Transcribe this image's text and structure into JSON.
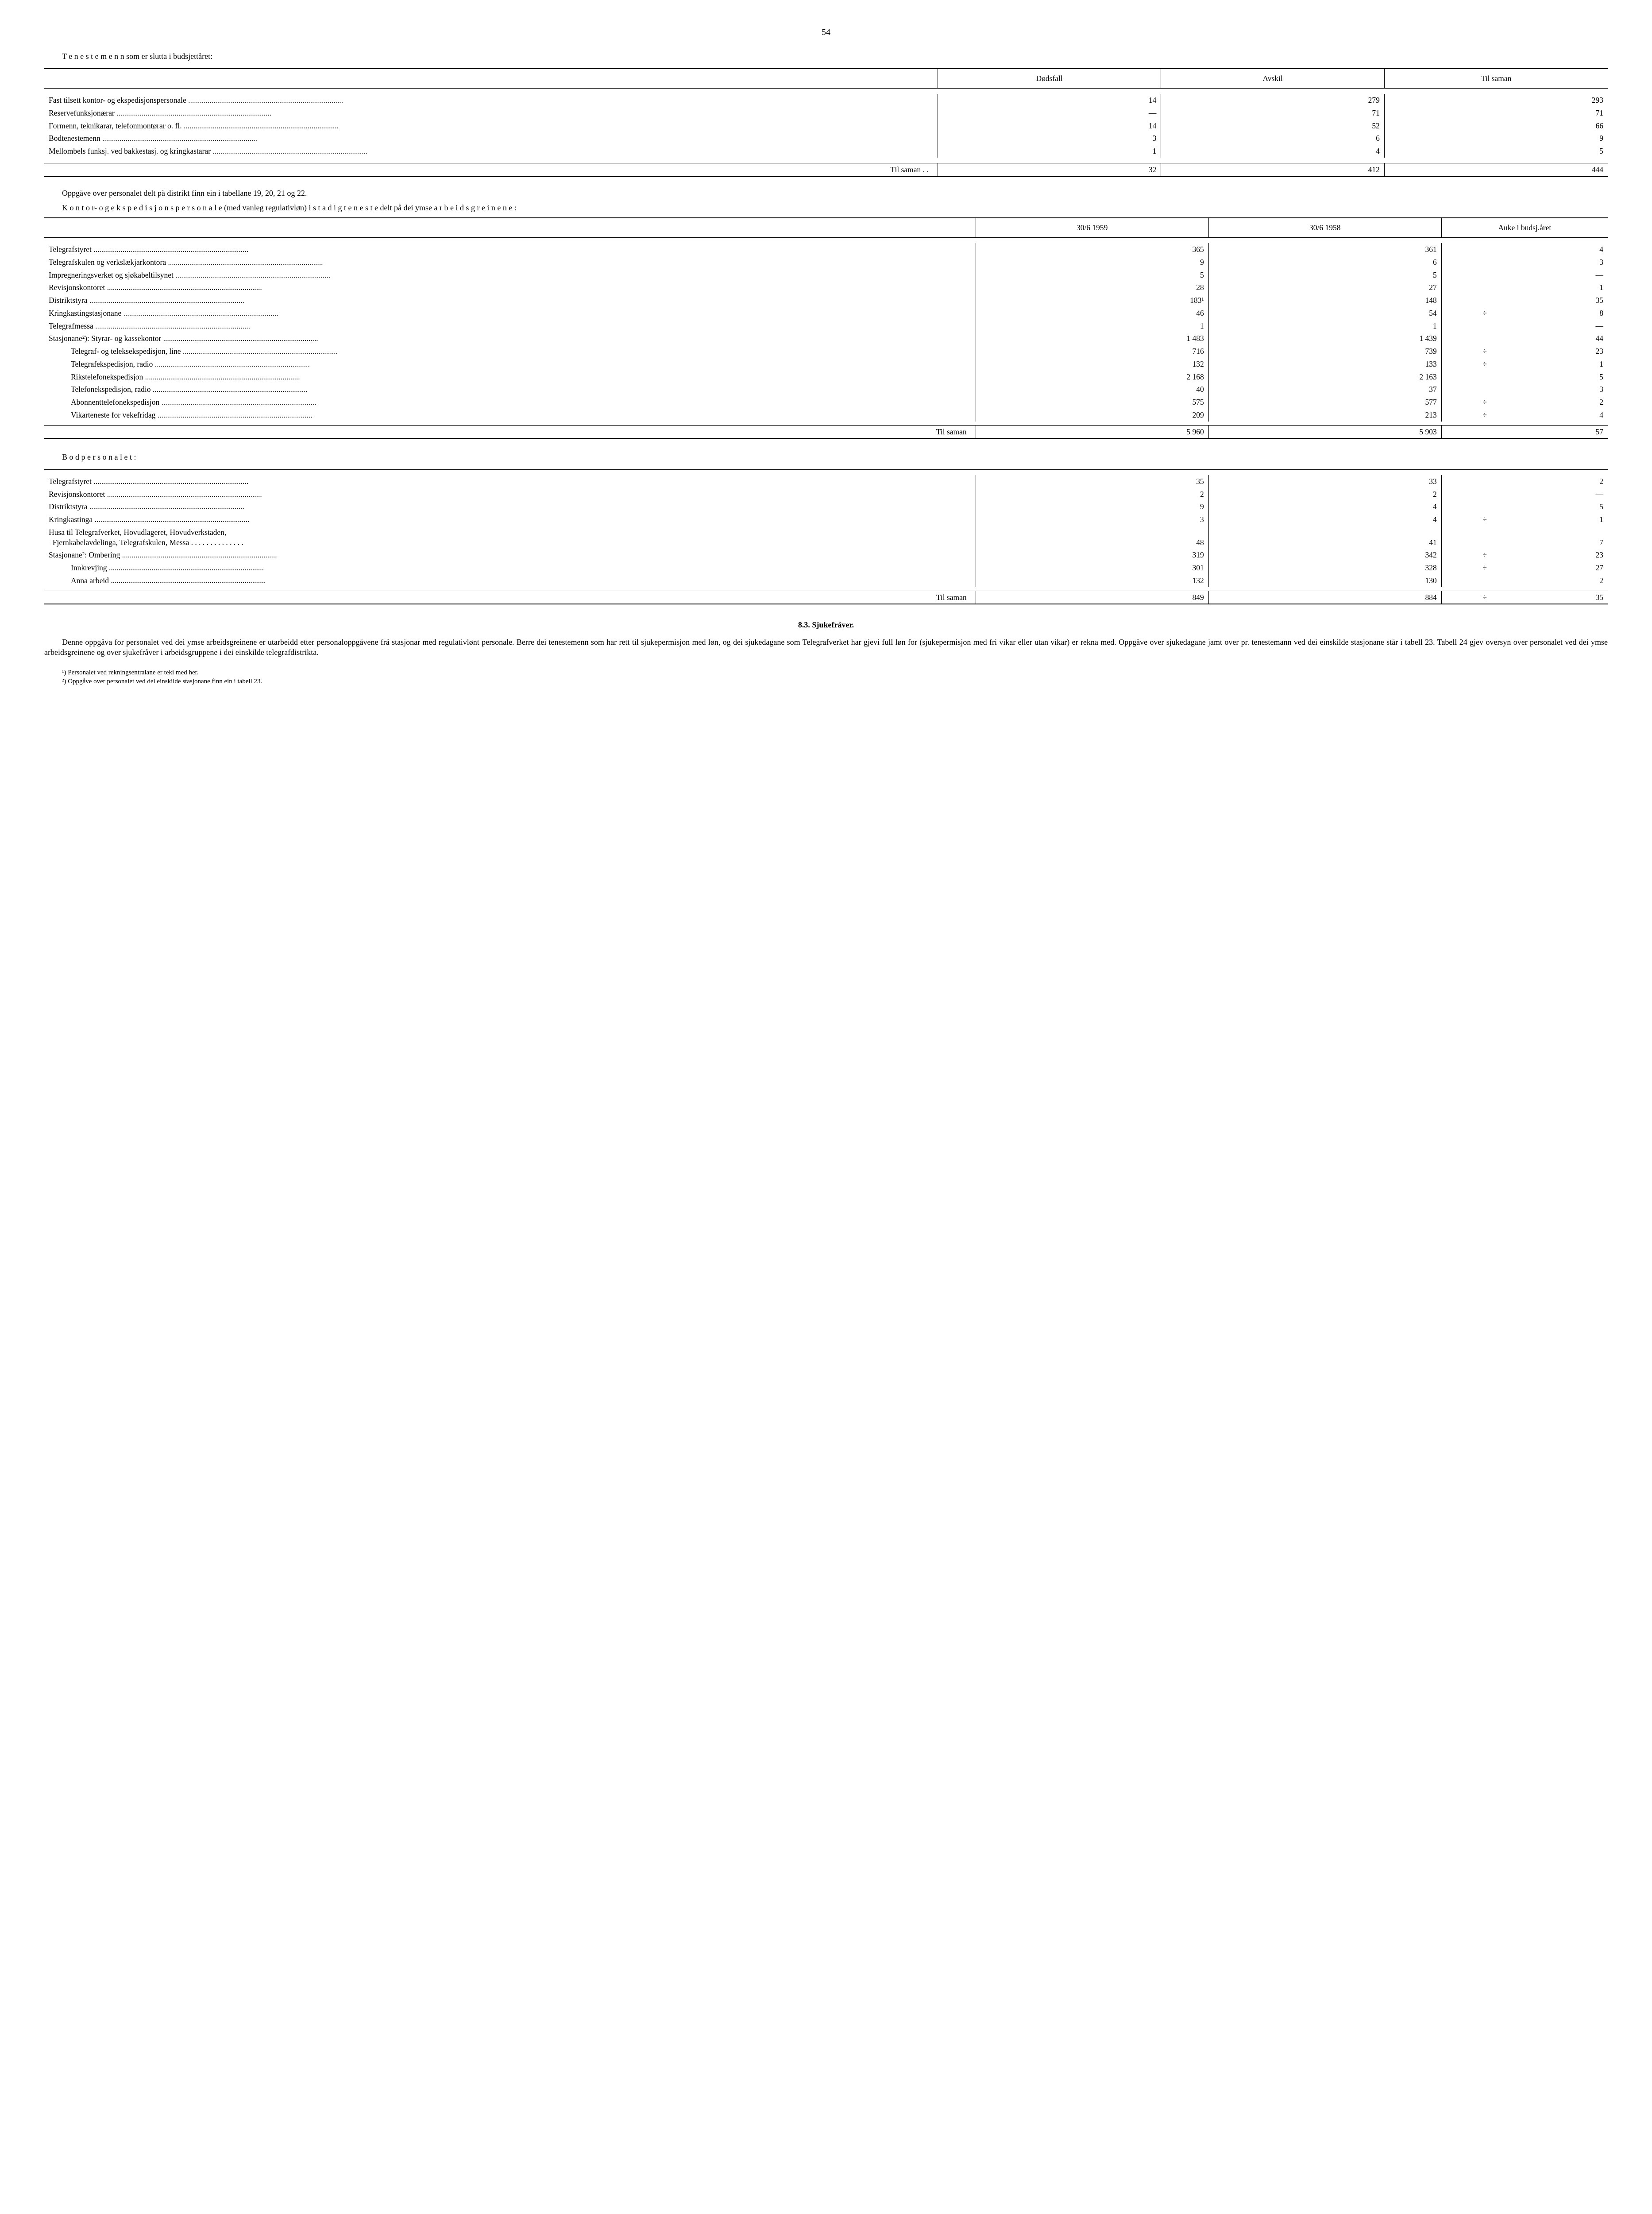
{
  "page_number": "54",
  "heading1": "T e n e s t e m e n n som er slutta i budsjettåret:",
  "table1": {
    "headers": [
      "Dødsfall",
      "Avskil",
      "Til saman"
    ],
    "rows": [
      {
        "label": "Fast tilsett kontor- og ekspedisjonspersonale",
        "c1": "14",
        "c2": "279",
        "c3": "293"
      },
      {
        "label": "Reservefunksjonærar",
        "c1": "—",
        "c2": "71",
        "c3": "71"
      },
      {
        "label": "Formenn, teknikarar, telefonmontørar o. fl.",
        "c1": "14",
        "c2": "52",
        "c3": "66"
      },
      {
        "label": "Bodtenestemenn",
        "c1": "3",
        "c2": "6",
        "c3": "9"
      },
      {
        "label": "Mellombels funksj. ved bakkestasj. og kringkastarar",
        "c1": "1",
        "c2": "4",
        "c3": "5"
      }
    ],
    "total_label": "Til saman  . .",
    "totals": {
      "c1": "32",
      "c2": "412",
      "c3": "444"
    }
  },
  "para1": "Oppgåve over personalet delt på distrikt finn ein i tabellane 19, 20, 21 og 22.",
  "para2": "K o n t o r-  o g  e k s p e d i s j o n s p e r s o n a l e (med vanleg regulativløn) i  s t a d i g  t e n e s t e  delt på dei ymse  a r b e i d s g r e i n e n e :",
  "table2": {
    "headers": [
      "30/6 1959",
      "30/6 1958",
      "Auke i budsj.året"
    ],
    "rows": [
      {
        "label": "Telegrafstyret",
        "c1": "365",
        "c2": "361",
        "sign": "",
        "c3": "4"
      },
      {
        "label": "Telegrafskulen og verkslækjarkontora",
        "c1": "9",
        "c2": "6",
        "sign": "",
        "c3": "3"
      },
      {
        "label": "Impregneringsverket og sjøkabeltilsynet",
        "c1": "5",
        "c2": "5",
        "sign": "",
        "c3": "—"
      },
      {
        "label": "Revisjonskontoret",
        "c1": "28",
        "c2": "27",
        "sign": "",
        "c3": "1"
      },
      {
        "label": "Distriktstyra",
        "c1": "183¹",
        "c2": "148",
        "sign": "",
        "c3": "35"
      },
      {
        "label": "Kringkastingstasjonane",
        "c1": "46",
        "c2": "54",
        "sign": "÷",
        "c3": "8"
      },
      {
        "label": "Telegrafmessa",
        "c1": "1",
        "c2": "1",
        "sign": "",
        "c3": "—"
      },
      {
        "label": "Stasjonane²): Styrar- og kassekontor",
        "c1": "1 483",
        "c2": "1 439",
        "sign": "",
        "c3": "44"
      },
      {
        "label": "Telegraf- og teleksekspedisjon, line",
        "indent": 1,
        "c1": "716",
        "c2": "739",
        "sign": "÷",
        "c3": "23"
      },
      {
        "label": "Telegrafekspedisjon, radio",
        "indent": 1,
        "c1": "132",
        "c2": "133",
        "sign": "÷",
        "c3": "1"
      },
      {
        "label": "Rikstelefonekspedisjon",
        "indent": 1,
        "c1": "2 168",
        "c2": "2 163",
        "sign": "",
        "c3": "5"
      },
      {
        "label": "Telefonekspedisjon, radio",
        "indent": 1,
        "c1": "40",
        "c2": "37",
        "sign": "",
        "c3": "3"
      },
      {
        "label": "Abonnenttelefonekspedisjon",
        "indent": 1,
        "c1": "575",
        "c2": "577",
        "sign": "÷",
        "c3": "2"
      },
      {
        "label": "Vikarteneste for vekefridag",
        "indent": 1,
        "c1": "209",
        "c2": "213",
        "sign": "÷",
        "c3": "4"
      }
    ],
    "total_label": "Til saman",
    "totals": {
      "c1": "5 960",
      "c2": "5 903",
      "sign": "",
      "c3": "57"
    }
  },
  "heading2": "B o d p e r s o n a l e t :",
  "table3": {
    "rows": [
      {
        "label": "Telegrafstyret",
        "c1": "35",
        "c2": "33",
        "sign": "",
        "c3": "2"
      },
      {
        "label": "Revisjonskontoret",
        "c1": "2",
        "c2": "2",
        "sign": "",
        "c3": "—"
      },
      {
        "label": "Distriktstyra",
        "c1": "9",
        "c2": "4",
        "sign": "",
        "c3": "5"
      },
      {
        "label": "Kringkastinga",
        "c1": "3",
        "c2": "4",
        "sign": "÷",
        "c3": "1"
      },
      {
        "label": "Husa til Telegrafverket, Hovudlageret, Hovudverkstaden, Fjernkabelavdelinga, Telegrafskulen, Messa",
        "wrap": true,
        "c1": "48",
        "c2": "41",
        "sign": "",
        "c3": "7"
      },
      {
        "label": "Stasjonane²: Ombering",
        "c1": "319",
        "c2": "342",
        "sign": "÷",
        "c3": "23"
      },
      {
        "label": "Innkrevjing",
        "indent": 1,
        "c1": "301",
        "c2": "328",
        "sign": "÷",
        "c3": "27"
      },
      {
        "label": "Anna arbeid",
        "indent": 1,
        "c1": "132",
        "c2": "130",
        "sign": "",
        "c3": "2"
      }
    ],
    "total_label": "Til saman",
    "totals": {
      "c1": "849",
      "c2": "884",
      "sign": "÷",
      "c3": "35"
    }
  },
  "section_title": "8.3. Sjukefråver.",
  "para3": "Denne oppgåva for personalet ved dei ymse arbeidsgreinene er utarbeidd etter personaloppgåvene frå stasjonar med regulativlønt personale. Berre dei tenestemenn som har rett til sjukepermisjon med løn, og dei sjukedagane som Telegrafverket har gjevi full løn for (sjukepermisjon med fri vikar eller utan vikar) er rekna med. Oppgåve over sjukedagane jamt over pr. tenestemann ved dei einskilde stasjonane står i tabell 23. Tabell 24 gjev oversyn over personalet ved dei ymse arbeidsgreinene og over sjukefråver i arbeidsgruppene i dei einskilde telegrafdistrikta.",
  "footnote1": "¹) Personalet ved rekningsentralane er teki med her.",
  "footnote2": "²) Oppgåve over personalet ved dei einskilde stasjonane finn ein i tabell 23."
}
